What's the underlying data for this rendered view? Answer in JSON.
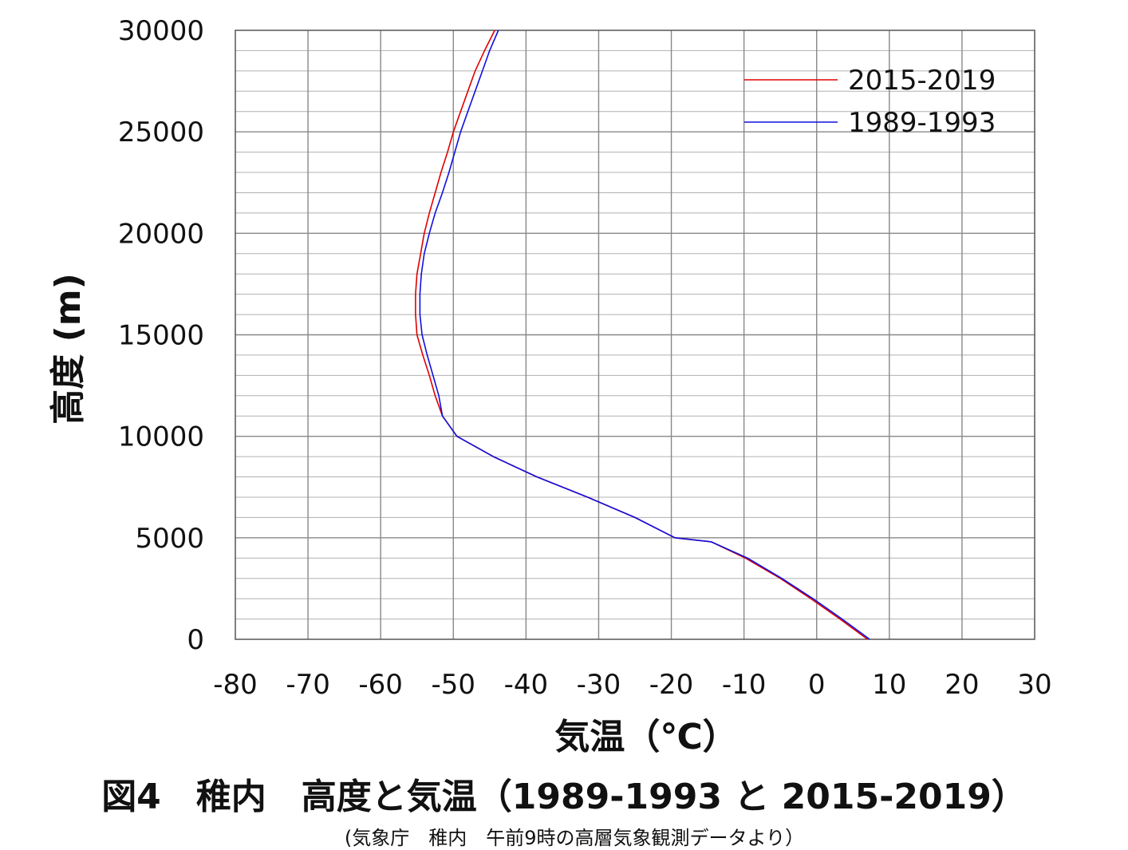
{
  "figure": {
    "title": "図4　稚内　高度と気温（1989-1993 と 2015-2019）",
    "source": "(気象庁　稚内　午前9時の高層気象観測データより）"
  },
  "chart_data": {
    "type": "line",
    "xlabel": "気温（℃）",
    "ylabel": "高度 (m)",
    "xlim": [
      -80,
      30
    ],
    "ylim": [
      0,
      30000
    ],
    "x_ticks": [
      "-80",
      "-70",
      "-60",
      "-50",
      "-40",
      "-30",
      "-20",
      "-10",
      "0",
      "10",
      "20",
      "30"
    ],
    "y_ticks": [
      "0",
      "5000",
      "10000",
      "15000",
      "20000",
      "25000",
      "30000"
    ],
    "x_major_step": 10,
    "y_major_step": 5000,
    "y_minor_step": 1000,
    "grid": true,
    "legend_position": "top-right",
    "series": [
      {
        "name": "2015-2019",
        "color": "#e00000",
        "points": [
          [
            7.0,
            0
          ],
          [
            3.2,
            1000
          ],
          [
            -0.8,
            2000
          ],
          [
            -5.0,
            3000
          ],
          [
            -9.8,
            4000
          ],
          [
            -14.5,
            4800
          ],
          [
            -19.5,
            5000
          ],
          [
            -25.0,
            6000
          ],
          [
            -31.5,
            7000
          ],
          [
            -38.5,
            8000
          ],
          [
            -44.5,
            9000
          ],
          [
            -49.5,
            10000
          ],
          [
            -51.5,
            11000
          ],
          [
            -52.5,
            12000
          ],
          [
            -53.3,
            13000
          ],
          [
            -54.2,
            14000
          ],
          [
            -55.0,
            15000
          ],
          [
            -55.2,
            16000
          ],
          [
            -55.2,
            17000
          ],
          [
            -55.0,
            18000
          ],
          [
            -54.5,
            19000
          ],
          [
            -54.0,
            20000
          ],
          [
            -53.3,
            21000
          ],
          [
            -52.5,
            22000
          ],
          [
            -51.7,
            23000
          ],
          [
            -50.8,
            24000
          ],
          [
            -50.0,
            25000
          ],
          [
            -49.0,
            26000
          ],
          [
            -48.0,
            27000
          ],
          [
            -47.0,
            28000
          ],
          [
            -45.7,
            29000
          ],
          [
            -44.3,
            30000
          ]
        ]
      },
      {
        "name": "1989-1993",
        "color": "#1010e0",
        "points": [
          [
            7.3,
            0
          ],
          [
            3.5,
            1000
          ],
          [
            -0.5,
            2000
          ],
          [
            -4.8,
            3000
          ],
          [
            -9.5,
            4000
          ],
          [
            -14.5,
            4800
          ],
          [
            -19.5,
            5000
          ],
          [
            -25.0,
            6000
          ],
          [
            -31.5,
            7000
          ],
          [
            -38.5,
            8000
          ],
          [
            -44.5,
            9000
          ],
          [
            -49.5,
            10000
          ],
          [
            -51.5,
            11000
          ],
          [
            -52.0,
            12000
          ],
          [
            -52.8,
            13000
          ],
          [
            -53.6,
            14000
          ],
          [
            -54.3,
            15000
          ],
          [
            -54.6,
            16000
          ],
          [
            -54.6,
            17000
          ],
          [
            -54.4,
            18000
          ],
          [
            -54.0,
            19000
          ],
          [
            -53.3,
            20000
          ],
          [
            -52.5,
            21000
          ],
          [
            -51.5,
            22000
          ],
          [
            -50.6,
            23000
          ],
          [
            -49.8,
            24000
          ],
          [
            -49.0,
            25000
          ],
          [
            -48.0,
            26000
          ],
          [
            -47.0,
            27000
          ],
          [
            -46.0,
            28000
          ],
          [
            -45.0,
            29000
          ],
          [
            -43.8,
            30000
          ]
        ]
      }
    ]
  }
}
